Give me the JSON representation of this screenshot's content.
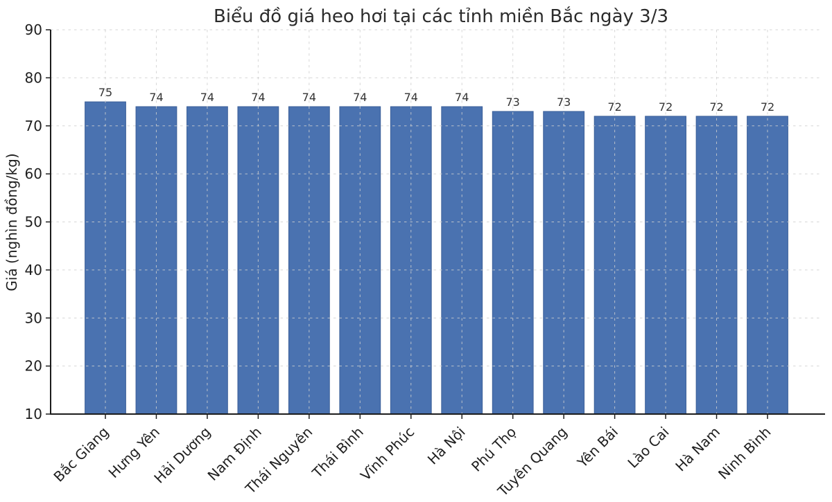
{
  "chart_data": {
    "type": "bar",
    "title": "Biểu đồ giá heo hơi tại các tỉnh miền Bắc ngày 3/3",
    "xlabel": "",
    "ylabel": "Giá (nghìn đồng/kg)",
    "categories": [
      "Bắc Giang",
      "Hưng Yên",
      "Hải Dương",
      "Nam Định",
      "Thái Nguyên",
      "Thái Bình",
      "Vĩnh Phúc",
      "Hà Nội",
      "Phú Thọ",
      "Tuyên Quang",
      "Yên Bái",
      "Lào Cai",
      "Hà Nam",
      "Ninh Bình"
    ],
    "values": [
      75,
      74,
      74,
      74,
      74,
      74,
      74,
      74,
      73,
      73,
      72,
      72,
      72,
      72
    ],
    "value_labels": [
      "75",
      "74",
      "74",
      "74",
      "74",
      "74",
      "74",
      "74",
      "73",
      "73",
      "72",
      "72",
      "72",
      "72"
    ],
    "ylim": [
      10,
      90
    ],
    "yticks": [
      10,
      20,
      30,
      40,
      50,
      60,
      70,
      80,
      90
    ],
    "grid": "dashed, horizontal and vertical, drawn above bars",
    "legend": "none"
  },
  "colors": {
    "bar_fill": "#4a72b0",
    "bar_edge": "#3b5f98",
    "grid": "#cfcfcf",
    "axis": "#1c1c1c",
    "tick_text": "#1f1f1f",
    "value_text": "#333333",
    "title_text": "#2b2b2b",
    "background": "#ffffff"
  }
}
